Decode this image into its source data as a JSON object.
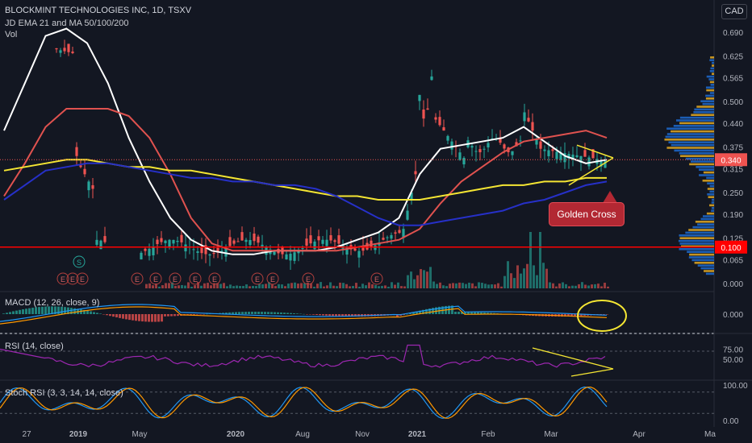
{
  "header": {
    "title": "BLOCKMINT TECHNOLOGIES INC, 1D, TSXV",
    "indicator": "JD EMA 21 and MA 50/100/200",
    "volume": "Vol",
    "currency": "CAD"
  },
  "annotations": {
    "golden_cross": "Golden Cross",
    "split_marker": "S",
    "earnings_marker": "E"
  },
  "colors": {
    "background": "#131722",
    "white_line": "#ffffff",
    "red_line": "#e0524f",
    "yellow_line": "#f5e633",
    "blue_line": "#2630c8",
    "up_candle": "#26a69a",
    "down_candle": "#ef5350",
    "support_line": "#ff0000",
    "macd_line": "#2196f3",
    "signal_line": "#ff9800",
    "rsi_line": "#9c27b0",
    "stoch_k": "#2196f3",
    "stoch_d": "#ff9800"
  },
  "chart_data": [
    {
      "type": "candlestick",
      "title": "BLOCKMINT TECHNOLOGIES INC, 1D, TSXV",
      "x_ticks": [
        "27",
        "2019",
        "May",
        "2020",
        "Aug",
        "Nov",
        "2021",
        "Feb",
        "Mar",
        "Apr",
        "Ma"
      ],
      "y_ticks": [
        0.69,
        0.625,
        0.565,
        0.5,
        0.44,
        0.375,
        0.315,
        0.25,
        0.19,
        0.125,
        0.065,
        0.0
      ],
      "price_labels": {
        "last": "0.340",
        "support": "0.100"
      },
      "last_price": 0.34,
      "support_level": 0.1,
      "series": [
        {
          "name": "EMA 21",
          "color": "white",
          "values": [
            0.42,
            0.55,
            0.68,
            0.7,
            0.66,
            0.55,
            0.4,
            0.28,
            0.18,
            0.12,
            0.09,
            0.08,
            0.08,
            0.09,
            0.09,
            0.09,
            0.1,
            0.12,
            0.14,
            0.18,
            0.3,
            0.37,
            0.38,
            0.39,
            0.4,
            0.43,
            0.39,
            0.35,
            0.33,
            0.34
          ]
        },
        {
          "name": "MA 50",
          "color": "red",
          "values": [
            0.24,
            0.33,
            0.43,
            0.48,
            0.48,
            0.48,
            0.46,
            0.4,
            0.3,
            0.18,
            0.11,
            0.09,
            0.09,
            0.09,
            0.09,
            0.09,
            0.09,
            0.1,
            0.11,
            0.12,
            0.15,
            0.22,
            0.28,
            0.32,
            0.36,
            0.39,
            0.4,
            0.41,
            0.42,
            0.4
          ]
        },
        {
          "name": "MA 100",
          "color": "yellow",
          "values": [
            0.31,
            0.32,
            0.33,
            0.34,
            0.34,
            0.33,
            0.32,
            0.32,
            0.31,
            0.31,
            0.3,
            0.29,
            0.28,
            0.27,
            0.26,
            0.25,
            0.24,
            0.24,
            0.23,
            0.23,
            0.23,
            0.24,
            0.25,
            0.26,
            0.27,
            0.27,
            0.28,
            0.28,
            0.29,
            0.29
          ]
        },
        {
          "name": "MA 200",
          "color": "blue",
          "values": [
            0.23,
            0.27,
            0.31,
            0.32,
            0.33,
            0.33,
            0.32,
            0.31,
            0.3,
            0.29,
            0.29,
            0.28,
            0.28,
            0.27,
            0.27,
            0.26,
            0.24,
            0.21,
            0.18,
            0.16,
            0.16,
            0.17,
            0.18,
            0.19,
            0.2,
            0.22,
            0.23,
            0.25,
            0.27,
            0.28
          ]
        }
      ],
      "triangle": {
        "upper": [
          [
            0.38,
            0.36
          ],
          [
            0.345,
            0.345
          ]
        ],
        "lower": [
          [
            0.27,
            0.31
          ],
          [
            0.345,
            0.345
          ]
        ]
      }
    },
    {
      "type": "histogram",
      "title": "MACD (12, 26, close, 9)",
      "y_ticks": [
        0.0
      ]
    },
    {
      "type": "line",
      "title": "RSI (14, close)",
      "y_ticks": [
        75.0,
        50.0
      ]
    },
    {
      "type": "line",
      "title": "Stoch RSI (3, 3, 14, 14, close)",
      "y_ticks": [
        100.0,
        0.0
      ]
    }
  ]
}
